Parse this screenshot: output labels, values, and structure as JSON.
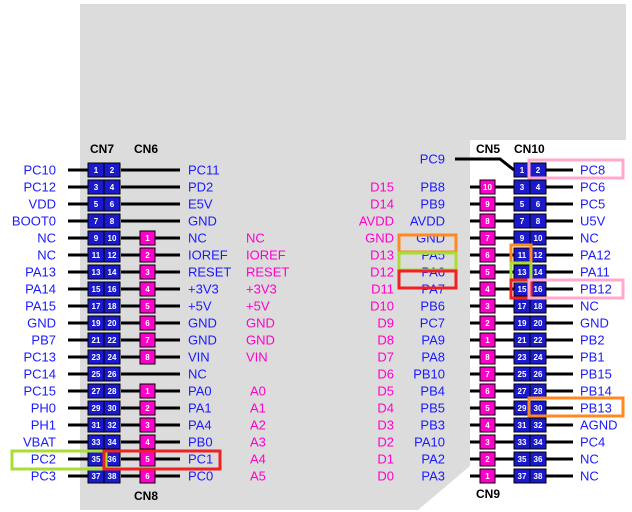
{
  "headers": {
    "cn7": "CN7",
    "cn6": "CN6",
    "cn8": "CN8",
    "cn5": "CN5",
    "cn10": "CN10",
    "cn9": "CN9"
  },
  "colors": {
    "blue_text": "#1a1aff",
    "magenta_text": "#ff00cc",
    "pin_fill": "#1a1acc",
    "pin_magenta": "#ff00cc",
    "board": "#dcdcdc",
    "box_green": "#aadd33",
    "box_red": "#ee2222",
    "box_orange": "#ff8822",
    "box_pink": "#ffaacc"
  },
  "cn7": {
    "left_labels": [
      "PC10",
      "PC12",
      "VDD",
      "BOOT0",
      "NC",
      "NC",
      "PA13",
      "PA14",
      "PA15",
      "GND",
      "PB7",
      "PC13",
      "PC14",
      "PC15",
      "PH0",
      "PH1",
      "VBAT",
      "PC2",
      "PC3"
    ],
    "pins_odd": [
      "1",
      "3",
      "5",
      "7",
      "9",
      "11",
      "13",
      "15",
      "17",
      "19",
      "21",
      "23",
      "25",
      "27",
      "29",
      "31",
      "33",
      "35",
      "37"
    ],
    "pins_even": [
      "2",
      "4",
      "6",
      "8",
      "10",
      "12",
      "14",
      "16",
      "18",
      "20",
      "22",
      "24",
      "26",
      "28",
      "30",
      "32",
      "34",
      "36",
      "38"
    ],
    "right_labels": [
      "PC11",
      "PD2",
      "E5V",
      "GND",
      "NC",
      "IOREF",
      "RESET",
      "+3V3",
      "+5V",
      "GND",
      "GND",
      "VIN",
      "NC",
      "PA0",
      "PA1",
      "PA4",
      "PB0",
      "PC1",
      "PC0"
    ]
  },
  "cn6": {
    "pins": [
      "1",
      "2",
      "3",
      "4",
      "5",
      "6",
      "7",
      "8"
    ],
    "labels": [
      "NC",
      "IOREF",
      "RESET",
      "+3V3",
      "+5V",
      "GND",
      "GND",
      "VIN"
    ]
  },
  "cn8": {
    "pins": [
      "1",
      "2",
      "3",
      "4",
      "5",
      "6"
    ],
    "labels": [
      "A0",
      "A1",
      "A2",
      "A3",
      "A4",
      "A5"
    ]
  },
  "cn10": {
    "top_left": "PC9",
    "left_labels": [
      "PB8",
      "PB9",
      "AVDD",
      "GND",
      "PA5",
      "PA6",
      "PA7",
      "PB6",
      "PC7",
      "PA9",
      "PA8",
      "PB10",
      "PB4",
      "PB5",
      "PB3",
      "PA10",
      "PA2",
      "PA3"
    ],
    "pins_odd": [
      "1",
      "3",
      "5",
      "7",
      "9",
      "11",
      "13",
      "15",
      "17",
      "19",
      "21",
      "23",
      "25",
      "27",
      "29",
      "31",
      "33",
      "35",
      "37"
    ],
    "pins_even": [
      "2",
      "4",
      "6",
      "8",
      "10",
      "12",
      "14",
      "16",
      "18",
      "20",
      "22",
      "24",
      "26",
      "28",
      "30",
      "32",
      "34",
      "36",
      "38"
    ],
    "right_labels": [
      "PC8",
      "PC6",
      "PC5",
      "U5V",
      "NC",
      "PA12",
      "PA11",
      "PB12",
      "NC",
      "GND",
      "PB2",
      "PB1",
      "PB15",
      "PB14",
      "PB13",
      "AGND",
      "PC4",
      "NC",
      "NC"
    ]
  },
  "cn5": {
    "pins": [
      "10",
      "9",
      "8",
      "7",
      "6",
      "5",
      "4",
      "3",
      "2",
      "1"
    ],
    "labels": [
      "D15",
      "D14",
      "AVDD",
      "GND",
      "D13",
      "D12",
      "D11",
      "D10",
      "D9",
      "D8"
    ]
  },
  "cn9": {
    "pins": [
      "8",
      "7",
      "6",
      "5",
      "4",
      "3",
      "2",
      "1"
    ],
    "labels": [
      "D7",
      "D6",
      "D5",
      "D4",
      "D3",
      "D2",
      "D1",
      "D0"
    ]
  }
}
